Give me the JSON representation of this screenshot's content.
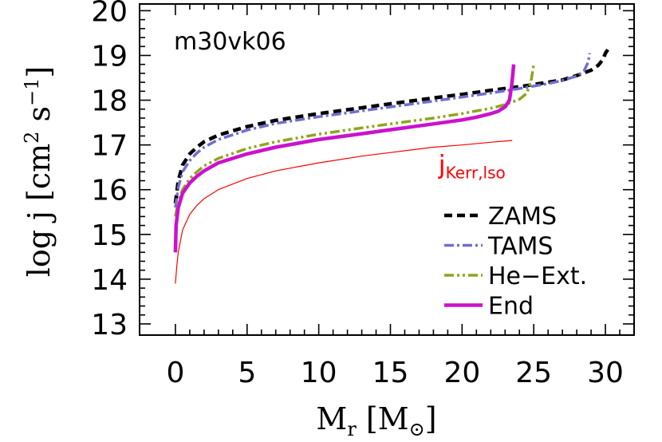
{
  "chart_data": {
    "type": "line",
    "model_label": "m30vk06",
    "xlabel": "M_r [M_⊙]",
    "ylabel": "log j [cm^2 s^-1]",
    "xlim": [
      -2.5,
      32
    ],
    "ylim": [
      12.75,
      20.15
    ],
    "xticks": [
      0,
      5,
      10,
      15,
      20,
      25,
      30
    ],
    "yticks": [
      13,
      14,
      15,
      16,
      17,
      18,
      19,
      20
    ],
    "grid": false,
    "legend_position": "bottom-right",
    "series": [
      {
        "name": "ZAMS",
        "color": "#000000",
        "style": "dashed",
        "points": [
          [
            0.0,
            15.7
          ],
          [
            0.2,
            16.2
          ],
          [
            0.5,
            16.55
          ],
          [
            1,
            16.8
          ],
          [
            1.5,
            16.95
          ],
          [
            2,
            17.07
          ],
          [
            3,
            17.22
          ],
          [
            5,
            17.41
          ],
          [
            7,
            17.55
          ],
          [
            10,
            17.7
          ],
          [
            13,
            17.83
          ],
          [
            15,
            17.92
          ],
          [
            18,
            18.05
          ],
          [
            20,
            18.13
          ],
          [
            22,
            18.22
          ],
          [
            24,
            18.3
          ],
          [
            26,
            18.4
          ],
          [
            27,
            18.45
          ],
          [
            28,
            18.55
          ],
          [
            29,
            18.67
          ],
          [
            29.5,
            18.78
          ],
          [
            29.8,
            18.9
          ],
          [
            30,
            19.05
          ],
          [
            30.2,
            19.15
          ]
        ]
      },
      {
        "name": "TAMS",
        "color": "#6f6fd0",
        "style": "dashdot",
        "points": [
          [
            0.0,
            15.6
          ],
          [
            0.2,
            16.05
          ],
          [
            0.5,
            16.4
          ],
          [
            1,
            16.65
          ],
          [
            1.5,
            16.82
          ],
          [
            2,
            16.95
          ],
          [
            3,
            17.12
          ],
          [
            5,
            17.33
          ],
          [
            7,
            17.48
          ],
          [
            10,
            17.63
          ],
          [
            13,
            17.76
          ],
          [
            15,
            17.85
          ],
          [
            18,
            17.98
          ],
          [
            20,
            18.07
          ],
          [
            22,
            18.16
          ],
          [
            24,
            18.26
          ],
          [
            26,
            18.37
          ],
          [
            27,
            18.44
          ],
          [
            28,
            18.54
          ],
          [
            28.5,
            18.65
          ],
          [
            28.8,
            18.85
          ],
          [
            28.9,
            19.05
          ]
        ]
      },
      {
        "name": "He−Ext.",
        "color": "#8ea61c",
        "style": "dashdotdot",
        "points": [
          [
            0.0,
            15.4
          ],
          [
            0.2,
            15.75
          ],
          [
            0.5,
            16.0
          ],
          [
            1,
            16.25
          ],
          [
            1.5,
            16.4
          ],
          [
            2,
            16.53
          ],
          [
            3,
            16.7
          ],
          [
            5,
            16.92
          ],
          [
            7,
            17.07
          ],
          [
            10,
            17.24
          ],
          [
            13,
            17.38
          ],
          [
            15,
            17.47
          ],
          [
            18,
            17.6
          ],
          [
            20,
            17.7
          ],
          [
            22,
            17.82
          ],
          [
            23,
            17.9
          ],
          [
            24,
            18.02
          ],
          [
            24.5,
            18.15
          ],
          [
            24.8,
            18.4
          ],
          [
            24.9,
            18.6
          ],
          [
            25,
            18.8
          ]
        ]
      },
      {
        "name": "End",
        "color": "#cc11cc",
        "style": "solid",
        "points": [
          [
            0.0,
            14.6
          ],
          [
            0.05,
            15.2
          ],
          [
            0.2,
            15.6
          ],
          [
            0.5,
            15.92
          ],
          [
            1,
            16.15
          ],
          [
            1.5,
            16.3
          ],
          [
            2,
            16.42
          ],
          [
            3,
            16.6
          ],
          [
            5,
            16.8
          ],
          [
            7,
            16.95
          ],
          [
            10,
            17.12
          ],
          [
            13,
            17.25
          ],
          [
            15,
            17.34
          ],
          [
            18,
            17.47
          ],
          [
            20,
            17.56
          ],
          [
            21,
            17.62
          ],
          [
            22,
            17.7
          ],
          [
            22.5,
            17.75
          ],
          [
            23,
            17.85
          ],
          [
            23.3,
            18.0
          ],
          [
            23.45,
            18.3
          ],
          [
            23.55,
            18.6
          ],
          [
            23.6,
            18.8
          ]
        ]
      },
      {
        "name": "j_Kerr,lso",
        "color": "#ff0000",
        "style": "thin",
        "points": [
          [
            0.0,
            13.9
          ],
          [
            0.1,
            14.3
          ],
          [
            0.2,
            14.6
          ],
          [
            0.5,
            15.1
          ],
          [
            1,
            15.45
          ],
          [
            1.5,
            15.65
          ],
          [
            2,
            15.8
          ],
          [
            3,
            16.0
          ],
          [
            5,
            16.25
          ],
          [
            7,
            16.42
          ],
          [
            10,
            16.6
          ],
          [
            13,
            16.75
          ],
          [
            15,
            16.83
          ],
          [
            18,
            16.95
          ],
          [
            20,
            17.0
          ],
          [
            22,
            17.06
          ],
          [
            23.5,
            17.1
          ]
        ]
      }
    ],
    "annotation": {
      "main": "j",
      "subscript": "Kerr,lso",
      "color": "#ff0000",
      "x": 18.8,
      "y": 17.0
    }
  }
}
